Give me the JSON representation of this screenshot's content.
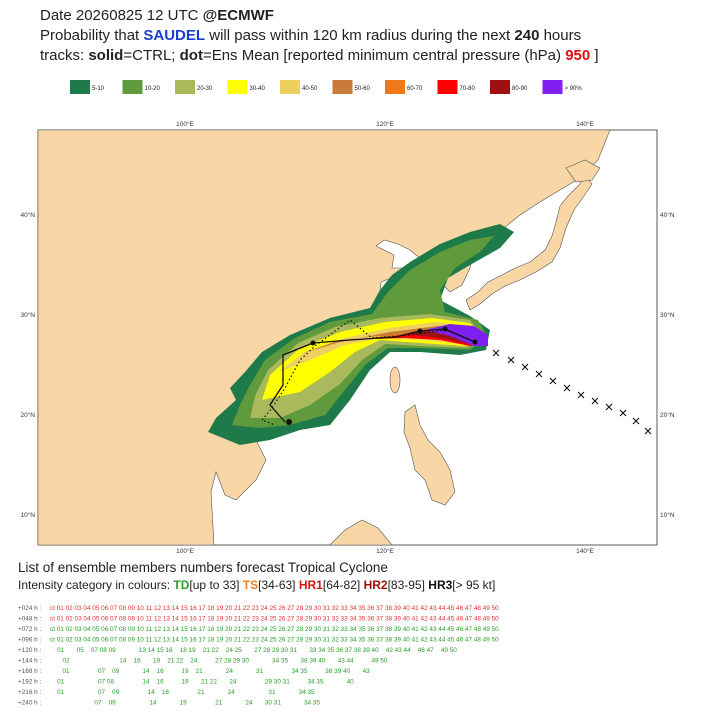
{
  "header": {
    "lines": [
      [
        {
          "text": "Date 20260825 12 UTC    ",
          "color": "#222",
          "bold": false
        },
        {
          "text": "@ECMWF",
          "color": "#222",
          "bold": true
        }
      ],
      [
        {
          "text": "Probability that ",
          "color": "#222",
          "bold": false
        },
        {
          "text": "SAUDEL",
          "color": "#1a3fd0",
          "bold": true
        },
        {
          "text": " will pass within 120 km radius during the next ",
          "color": "#222",
          "bold": false
        },
        {
          "text": "240",
          "color": "#222",
          "bold": true
        },
        {
          "text": " hours",
          "color": "#222",
          "bold": false
        }
      ],
      [
        {
          "text": "tracks: ",
          "color": "#222",
          "bold": false
        },
        {
          "text": "solid",
          "color": "#222",
          "bold": true
        },
        {
          "text": "=CTRL; ",
          "color": "#222",
          "bold": false
        },
        {
          "text": "dot",
          "color": "#222",
          "bold": true
        },
        {
          "text": "=Ens Mean [reported minimum central pressure (hPa)  ",
          "color": "#222",
          "bold": false
        },
        {
          "text": "950",
          "color": "#e01010",
          "bold": true
        },
        {
          "text": "  ]",
          "color": "#222",
          "bold": false
        }
      ]
    ]
  },
  "legend": {
    "items": [
      {
        "label": "5-10",
        "color": "#1f7a4a"
      },
      {
        "label": "10-20",
        "color": "#5f9a3c"
      },
      {
        "label": "20-30",
        "color": "#a9b95b"
      },
      {
        "label": "30-40",
        "color": "#ffff00"
      },
      {
        "label": "40-50",
        "color": "#eed060"
      },
      {
        "label": "50-60",
        "color": "#c87b3a"
      },
      {
        "label": "60-70",
        "color": "#f07818"
      },
      {
        "label": "70-80",
        "color": "#ff0000"
      },
      {
        "label": "80-90",
        "color": "#a01010"
      },
      {
        "label": "> 90%",
        "color": "#8020f0"
      }
    ]
  },
  "map": {
    "lon_labels": [
      "100°E",
      "120°E",
      "140°E"
    ],
    "lat_labels": [
      "40°N",
      "30°N",
      "20°N",
      "10°N"
    ]
  },
  "footer": {
    "title": "List of ensemble members numbers forecast Tropical Cyclone",
    "intensity": [
      {
        "text": "Intensity category in colours: ",
        "color": "#222",
        "bold": false
      },
      {
        "text": "TD",
        "color": "#2aa02a",
        "bold": true
      },
      {
        "text": "[up to 33] ",
        "color": "#222",
        "bold": false
      },
      {
        "text": "TS",
        "color": "#f08020",
        "bold": true
      },
      {
        "text": "[34-63] ",
        "color": "#222",
        "bold": false
      },
      {
        "text": "HR1",
        "color": "#e01010",
        "bold": true
      },
      {
        "text": "[64-82] ",
        "color": "#222",
        "bold": false
      },
      {
        "text": "HR2",
        "color": "#a01010",
        "bold": true
      },
      {
        "text": "[83-95] ",
        "color": "#222",
        "bold": false
      },
      {
        "text": "HR3",
        "color": "#111",
        "bold": true
      },
      {
        "text": "[> 95 kt]",
        "color": "#222",
        "bold": false
      }
    ],
    "rows": [
      {
        "label": "+024 h :",
        "members": "ct 01 02 03 04 05 06 07 08 09 10 11 12 13 14 15 16 17 18 19 20 21 22 23 24 25 26 27 28 29 30 31 32 33 34 35 36 37 38 39 40 41 42 43 44 45 46 47 48 49 50",
        "color": "#e03030"
      },
      {
        "label": "+048 h :",
        "members": "ct 01 02 03 04 05 06 07 08 09 10 11 12 13 14 15 16 17 18 19 20 21 22 23 24 25 26 27 28 29 30 31 32 33 34 35 36 37 38 39 40 41 42 43 44 45 46 47 48 49 50",
        "color": "#e03030"
      },
      {
        "label": "+072 h :",
        "members": "ct 01 02 03 04 05 06 07 08 09 10 11 12 13 14 15 16 17 18 19 20 21 22 23 24 25 26 27 28 29 30 31 32 33 34 35 36 37 38 39 40 41 42 43 44 45 46 47 48 49 50",
        "color": "#2aa02a"
      },
      {
        "label": "+096 h :",
        "members": "ct 01 02 03 04 05 06 07 08 09 10 11 12 13 14 15 16 17 18 19 20 21 22 23 24 25 26 27 28 29 30 31 32 33 34 35 36 37 38 39 40 41 42 43 44 45 46 47 48 49 50",
        "color": "#2aa02a"
      },
      {
        "label": "+120 h :",
        "members": "    01       05    07 08 09             13 14 15 16    18 19    21 22    24 25       27 28 29 30 31       33 34 35 36 37 38 39 40    42 43 44    46 47    49 50",
        "color": "#2aa02a"
      },
      {
        "label": "+144 h :",
        "members": "       02                            14    16       19    21 22    24          27 28 29 30             34 35       38 39 40       43 44          49 50",
        "color": "#2aa02a"
      },
      {
        "label": "+168 h :",
        "members": "       01                07    09             14    16          19    21             24             31                34 35          38 39 40       43",
        "color": "#2aa02a"
      },
      {
        "label": "+192 h :",
        "members": "    01                   07 08                14    16          19       21 22       24                29 30 31          34 35             40",
        "color": "#2aa02a"
      },
      {
        "label": "+216 h :",
        "members": "    01                   07    09                14    16                21             24                   31             34 35",
        "color": "#2aa02a"
      },
      {
        "label": "+240 h :",
        "members": "                         07    09                   14             19                21             24       30 31             34 35",
        "color": "#2aa02a"
      }
    ]
  }
}
